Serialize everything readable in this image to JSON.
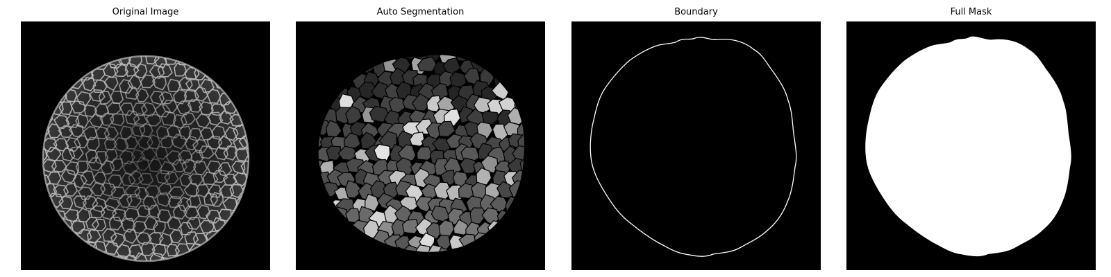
{
  "panels": [
    {
      "title": "Original Image"
    },
    {
      "title": "Auto Segmentation"
    },
    {
      "title": "Boundary"
    },
    {
      "title": "Full Mask"
    }
  ],
  "colors": {
    "background": "#000000",
    "foreground": "#ffffff",
    "membrane": "#cfcfcf"
  }
}
